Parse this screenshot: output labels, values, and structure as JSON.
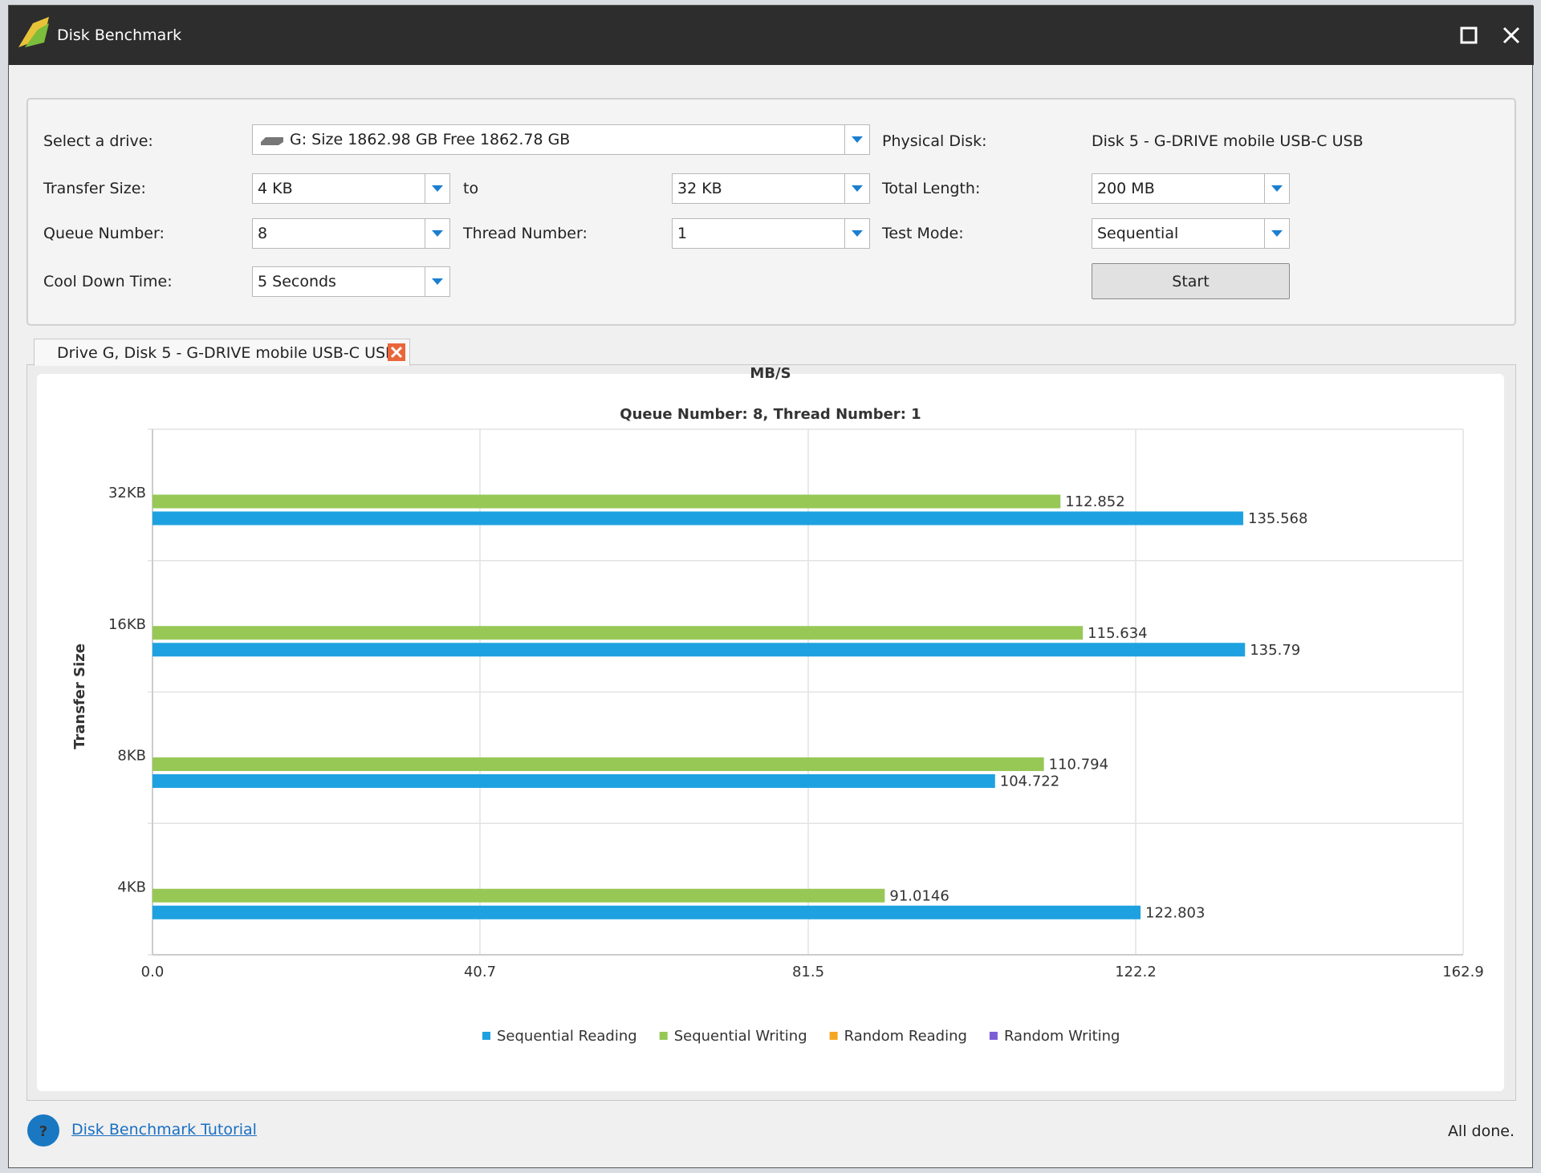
{
  "window": {
    "title": "Disk Benchmark"
  },
  "form": {
    "select_drive_label": "Select a drive:",
    "drive": "G:  Size 1862.98 GB  Free 1862.78 GB",
    "physical_disk_label": "Physical Disk:",
    "physical_disk": "Disk 5 - G-DRIVE mobile USB-C USB",
    "transfer_size_label": "Transfer Size:",
    "transfer_from": "4 KB",
    "to": "to",
    "transfer_to": "32 KB",
    "total_length_label": "Total Length:",
    "total_length": "200 MB",
    "queue_label": "Queue Number:",
    "queue": "8",
    "thread_label": "Thread Number:",
    "thread": "1",
    "test_mode_label": "Test Mode:",
    "test_mode": "Sequential",
    "cool_down_label": "Cool Down Time:",
    "cool_down": "5 Seconds",
    "start": "Start"
  },
  "tab": {
    "label": "Drive G, Disk 5 - G-DRIVE mobile USB-C USB"
  },
  "chart_data": {
    "type": "hbar",
    "title": "Queue Number: 8, Thread Number: 1",
    "x_label": "MB/S",
    "y_label": "Transfer Size",
    "categories": [
      "32KB",
      "16KB",
      "8KB",
      "4KB"
    ],
    "series": [
      {
        "name": "Sequential Reading",
        "color": "#1ea1e0",
        "values": [
          135.568,
          135.79,
          104.722,
          122.803
        ]
      },
      {
        "name": "Sequential Writing",
        "color": "#97c856",
        "values": [
          112.852,
          115.634,
          110.794,
          91.0146
        ]
      },
      {
        "name": "Random Reading",
        "color": "#f5a623",
        "values": [
          null,
          null,
          null,
          null
        ]
      },
      {
        "name": "Random Writing",
        "color": "#7b5fd6",
        "values": [
          null,
          null,
          null,
          null
        ]
      }
    ],
    "xlim": [
      0,
      162.9
    ],
    "xticks": [
      {
        "value": 0,
        "label": "0.0"
      },
      40.7,
      81.5,
      122.2,
      162.9
    ],
    "grid": true,
    "legend": "bottom"
  },
  "footer": {
    "tutorial": "Disk Benchmark Tutorial",
    "status": "All done."
  }
}
